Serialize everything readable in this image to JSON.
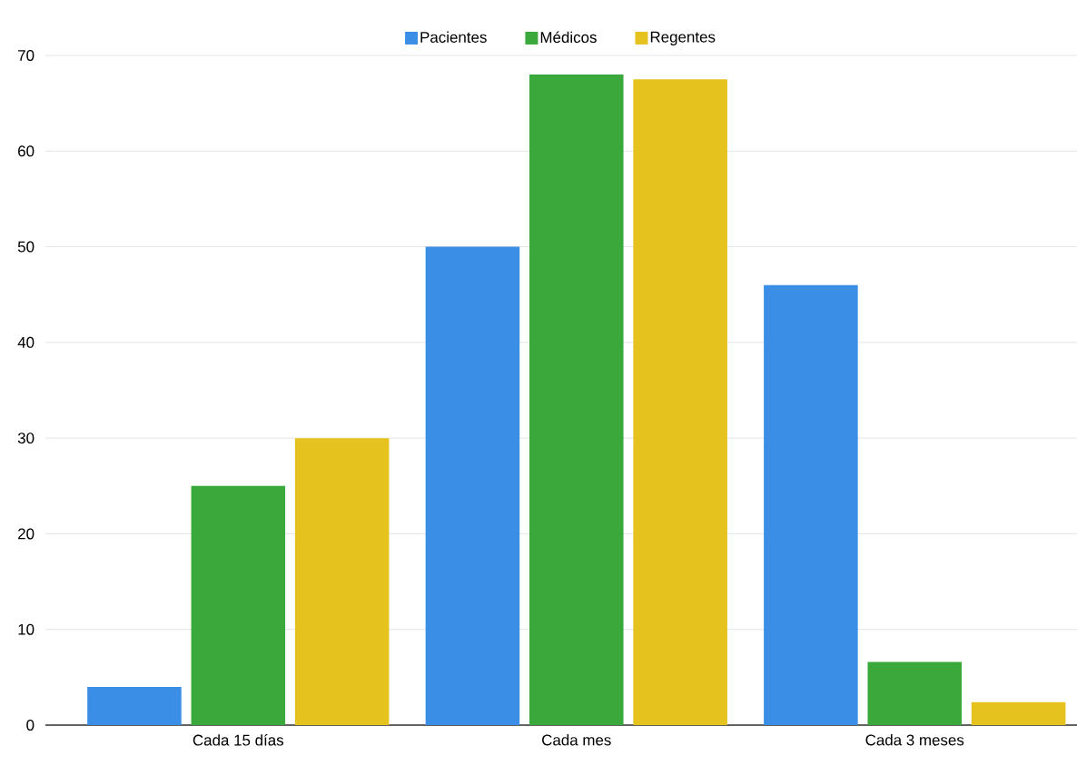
{
  "chart_data": {
    "type": "bar",
    "categories": [
      "Cada 15 días",
      "Cada mes",
      "Cada 3 meses"
    ],
    "series": [
      {
        "name": "Pacientes",
        "color": "#3a8ee6",
        "values": [
          4,
          50,
          46
        ]
      },
      {
        "name": "Médicos",
        "color": "#3aa83a",
        "values": [
          25,
          68,
          6.6
        ]
      },
      {
        "name": "Regentes",
        "color": "#e6c21f",
        "values": [
          30,
          67.5,
          2.4
        ]
      }
    ],
    "ylim": [
      0,
      70
    ],
    "yticks": [
      0,
      10,
      20,
      30,
      40,
      50,
      60,
      70
    ],
    "grid": "y",
    "legend": "top"
  }
}
